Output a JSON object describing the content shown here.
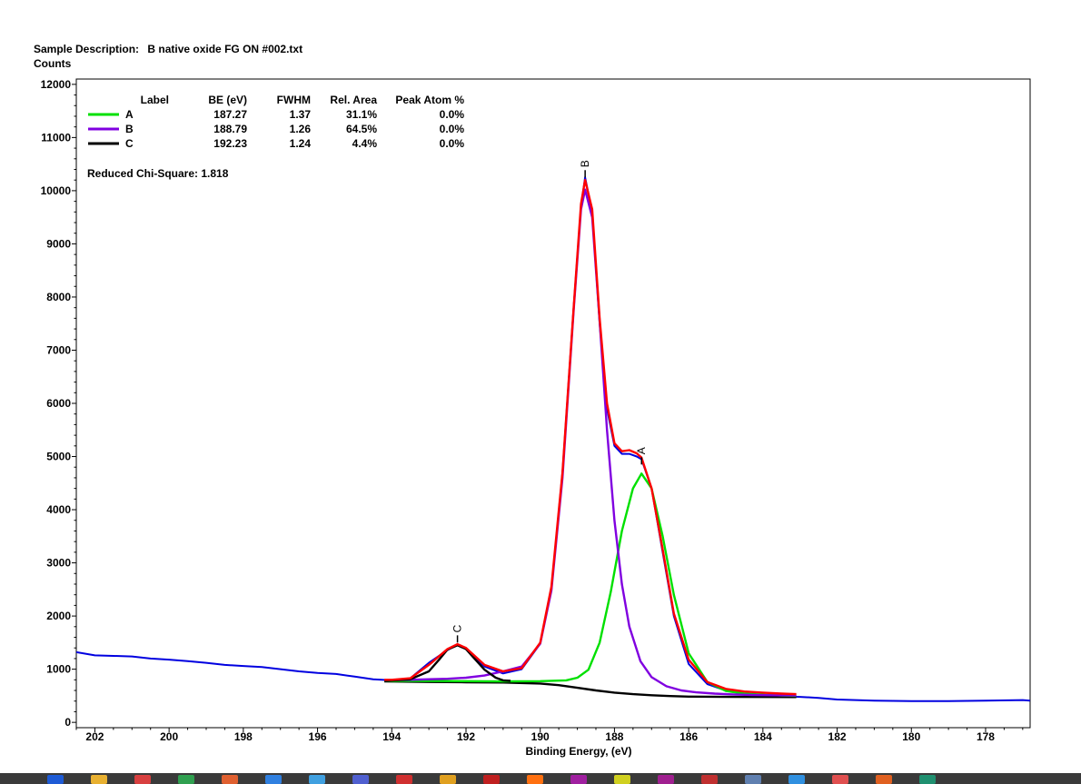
{
  "header": {
    "sample_label": "Sample Description:",
    "sample_value": "B native oxide FG ON #002.txt",
    "y_title": "Counts"
  },
  "chart_data": {
    "type": "line",
    "xlabel": "Binding Energy, (eV)",
    "ylabel": "Counts",
    "xlim": [
      202.5,
      176.8
    ],
    "ylim": [
      -100,
      12100
    ],
    "x_reversed": true,
    "x_ticks": [
      202,
      200,
      198,
      196,
      194,
      192,
      190,
      188,
      186,
      184,
      182,
      180,
      178
    ],
    "y_ticks": [
      0,
      1000,
      2000,
      3000,
      4000,
      5000,
      6000,
      7000,
      8000,
      9000,
      10000,
      11000,
      12000
    ],
    "legend": {
      "position": "top-left",
      "headers": [
        "Label",
        "BE (eV)",
        "FWHM",
        "Rel. Area",
        "Peak Atom %"
      ],
      "rows": [
        {
          "label": "A",
          "be": "187.27",
          "fwhm": "1.37",
          "rel_area": "31.1%",
          "atom": "0.0%",
          "color": "#00e000"
        },
        {
          "label": "B",
          "be": "188.79",
          "fwhm": "1.26",
          "rel_area": "64.5%",
          "atom": "0.0%",
          "color": "#8000e0"
        },
        {
          "label": "C",
          "be": "192.23",
          "fwhm": "1.24",
          "rel_area": "4.4%",
          "atom": "0.0%",
          "color": "#000000"
        }
      ]
    },
    "chi_square": "Reduced Chi-Square: 1.818",
    "peak_markers": [
      {
        "label": "B",
        "x": 188.79,
        "y": 10250
      },
      {
        "label": "A",
        "x": 187.27,
        "y": 4850
      },
      {
        "label": "C",
        "x": 192.23,
        "y": 1500
      }
    ],
    "series": [
      {
        "name": "data",
        "color": "#0000e0",
        "x": [
          202.5,
          202.0,
          201.5,
          201.0,
          200.5,
          200.0,
          199.5,
          199.0,
          198.5,
          198.0,
          197.5,
          197.0,
          196.5,
          196.0,
          195.5,
          195.0,
          194.5,
          194.0,
          193.5,
          193.0,
          192.5,
          192.25,
          192.0,
          191.5,
          191.0,
          190.5,
          190.0,
          189.7,
          189.4,
          189.1,
          188.9,
          188.79,
          188.6,
          188.4,
          188.2,
          188.0,
          187.8,
          187.6,
          187.4,
          187.27,
          187.0,
          186.7,
          186.4,
          186.0,
          185.5,
          185.0,
          184.5,
          184.0,
          183.5,
          183.0,
          182.5,
          182.0,
          181.0,
          180.0,
          179.0,
          178.0,
          177.0,
          176.8
        ],
        "y": [
          1320,
          1260,
          1250,
          1240,
          1200,
          1180,
          1150,
          1120,
          1080,
          1060,
          1040,
          1000,
          960,
          930,
          910,
          860,
          810,
          790,
          830,
          1120,
          1360,
          1460,
          1380,
          1050,
          920,
          1000,
          1480,
          2500,
          4700,
          7800,
          9700,
          10250,
          9600,
          7500,
          5900,
          5200,
          5050,
          5050,
          5000,
          4950,
          4400,
          3200,
          2000,
          1100,
          720,
          600,
          540,
          500,
          490,
          480,
          460,
          430,
          410,
          400,
          400,
          410,
          420,
          410
        ]
      },
      {
        "name": "envelope",
        "color": "#ff0000",
        "x": [
          194.2,
          194.0,
          193.5,
          193.0,
          192.5,
          192.23,
          192.0,
          191.5,
          191.0,
          190.5,
          190.0,
          189.7,
          189.4,
          189.1,
          188.9,
          188.79,
          188.6,
          188.4,
          188.2,
          188.0,
          187.8,
          187.6,
          187.4,
          187.27,
          187.0,
          186.7,
          186.4,
          186.0,
          185.5,
          185.0,
          184.5,
          184.0,
          183.5,
          183.1
        ],
        "y": [
          800,
          800,
          830,
          1080,
          1380,
          1470,
          1400,
          1080,
          960,
          1020,
          1500,
          2550,
          4700,
          7800,
          9750,
          10200,
          9650,
          7600,
          6000,
          5250,
          5100,
          5120,
          5060,
          4980,
          4400,
          3250,
          2050,
          1180,
          760,
          630,
          580,
          560,
          540,
          530
        ]
      },
      {
        "name": "A",
        "color": "#00e000",
        "x": [
          194.2,
          193.0,
          192.0,
          191.0,
          190.0,
          189.3,
          189.0,
          188.7,
          188.4,
          188.1,
          187.8,
          187.5,
          187.27,
          187.0,
          186.7,
          186.4,
          186.0,
          185.5,
          185.0,
          184.5,
          184.0,
          183.5,
          183.1
        ],
        "y": [
          780,
          780,
          775,
          770,
          775,
          790,
          840,
          990,
          1500,
          2450,
          3600,
          4400,
          4680,
          4400,
          3500,
          2400,
          1300,
          760,
          590,
          540,
          520,
          505,
          500
        ]
      },
      {
        "name": "B",
        "color": "#8000e0",
        "x": [
          194.2,
          193.5,
          193.0,
          192.5,
          192.0,
          191.5,
          191.0,
          190.5,
          190.0,
          189.7,
          189.4,
          189.1,
          188.9,
          188.79,
          188.6,
          188.4,
          188.2,
          188.0,
          187.8,
          187.6,
          187.3,
          187.0,
          186.6,
          186.2,
          185.8,
          185.3,
          184.8,
          184.3,
          183.8,
          183.1
        ],
        "y": [
          790,
          800,
          810,
          820,
          840,
          880,
          960,
          1050,
          1480,
          2480,
          4600,
          7750,
          9650,
          10020,
          9500,
          7550,
          5500,
          3800,
          2600,
          1800,
          1150,
          850,
          680,
          600,
          565,
          540,
          525,
          515,
          510,
          505
        ]
      },
      {
        "name": "C",
        "color": "#000000",
        "x": [
          194.2,
          193.5,
          193.0,
          192.7,
          192.5,
          192.23,
          192.0,
          191.8,
          191.5,
          191.2,
          191.0,
          190.8
        ],
        "y": [
          780,
          810,
          960,
          1200,
          1370,
          1450,
          1380,
          1220,
          990,
          840,
          790,
          780
        ]
      },
      {
        "name": "background",
        "color": "#000000",
        "x": [
          194.2,
          193.0,
          192.0,
          191.0,
          190.0,
          189.5,
          189.0,
          188.5,
          188.0,
          187.5,
          187.0,
          186.5,
          186.0,
          185.0,
          184.0,
          183.1
        ],
        "y": [
          770,
          760,
          755,
          750,
          730,
          700,
          650,
          600,
          560,
          530,
          510,
          495,
          485,
          480,
          478,
          475
        ]
      }
    ]
  }
}
